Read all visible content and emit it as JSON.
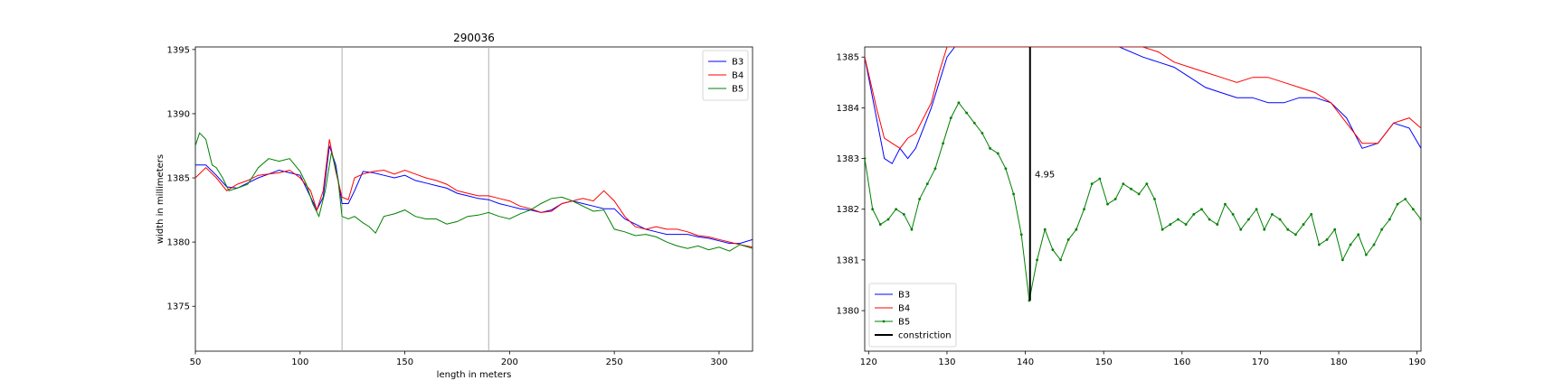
{
  "chart_data": [
    {
      "type": "line",
      "title": "290036",
      "xlabel": "length in meters",
      "ylabel": "width in millimeters",
      "xlim": [
        50,
        316
      ],
      "ylim": [
        1371.5,
        1395.2
      ],
      "xticks": [
        "50",
        "100",
        "150",
        "200",
        "250",
        "300"
      ],
      "yticks": [
        "1375",
        "1380",
        "1385",
        "1390",
        "1395"
      ],
      "vlines": [
        120,
        190
      ],
      "legend_position": "top-right",
      "grid": false,
      "series": [
        {
          "name": "B3",
          "color": "#0000ff",
          "x": [
            50,
            55,
            60,
            65,
            70,
            75,
            80,
            85,
            90,
            95,
            100,
            105,
            108,
            111,
            114,
            117,
            120,
            123,
            126,
            130,
            135,
            140,
            145,
            150,
            155,
            160,
            165,
            170,
            175,
            180,
            185,
            190,
            195,
            200,
            205,
            210,
            215,
            220,
            225,
            230,
            235,
            240,
            245,
            250,
            255,
            260,
            265,
            270,
            275,
            280,
            285,
            290,
            295,
            300,
            305,
            310,
            316
          ],
          "y": [
            1386,
            1386,
            1385.2,
            1384.3,
            1384.2,
            1384.6,
            1385,
            1385.3,
            1385.6,
            1385.4,
            1385.2,
            1383.5,
            1382.5,
            1383.5,
            1387.5,
            1386,
            1383,
            1383,
            1384,
            1385.5,
            1385.4,
            1385.2,
            1385,
            1385.2,
            1384.8,
            1384.6,
            1384.4,
            1384.2,
            1383.8,
            1383.6,
            1383.4,
            1383.3,
            1383,
            1382.8,
            1382.6,
            1382.5,
            1382.3,
            1382.5,
            1383,
            1383.2,
            1383,
            1382.8,
            1382.6,
            1382.6,
            1381.8,
            1381.4,
            1381,
            1380.8,
            1380.6,
            1380.6,
            1380.6,
            1380.4,
            1380.3,
            1380.1,
            1379.9,
            1379.9,
            1380.2
          ]
        },
        {
          "name": "B4",
          "color": "#ff0000",
          "x": [
            50,
            55,
            60,
            65,
            70,
            75,
            80,
            85,
            90,
            95,
            100,
            105,
            108,
            111,
            114,
            117,
            120,
            123,
            126,
            130,
            135,
            140,
            145,
            150,
            155,
            160,
            165,
            170,
            175,
            180,
            185,
            190,
            195,
            200,
            205,
            210,
            215,
            220,
            225,
            230,
            235,
            240,
            245,
            250,
            255,
            260,
            265,
            270,
            275,
            280,
            285,
            290,
            295,
            300,
            305,
            310,
            316
          ],
          "y": [
            1385,
            1385.8,
            1385,
            1384,
            1384.5,
            1384.8,
            1385.2,
            1385.3,
            1385.4,
            1385.6,
            1385,
            1384,
            1382.5,
            1384,
            1388,
            1385.5,
            1383.5,
            1383.3,
            1385,
            1385.3,
            1385.5,
            1385.6,
            1385.3,
            1385.6,
            1385.3,
            1385,
            1384.8,
            1384.5,
            1384,
            1383.8,
            1383.6,
            1383.6,
            1383.4,
            1383.2,
            1382.8,
            1382.6,
            1382.3,
            1382.4,
            1383,
            1383.2,
            1383.4,
            1383.2,
            1384,
            1383.2,
            1382,
            1381.2,
            1381,
            1381.2,
            1381,
            1381,
            1380.8,
            1380.5,
            1380.4,
            1380.2,
            1380,
            1379.8,
            1379.6
          ]
        },
        {
          "name": "B5",
          "color": "#008000",
          "x": [
            50,
            52,
            55,
            58,
            60,
            63,
            66,
            70,
            75,
            80,
            85,
            90,
            95,
            100,
            103,
            106,
            109,
            112,
            115,
            118,
            120,
            123,
            126,
            130,
            133,
            136,
            140,
            145,
            150,
            155,
            160,
            165,
            170,
            175,
            180,
            185,
            190,
            195,
            200,
            205,
            210,
            215,
            220,
            225,
            230,
            235,
            240,
            245,
            250,
            255,
            260,
            265,
            270,
            275,
            280,
            285,
            290,
            295,
            300,
            305,
            310,
            316
          ],
          "y": [
            1387.5,
            1388.5,
            1388,
            1386,
            1385.8,
            1385,
            1384,
            1384.2,
            1384.5,
            1385.8,
            1386.5,
            1386.3,
            1386.5,
            1385.5,
            1384.5,
            1383,
            1382,
            1384,
            1387,
            1385,
            1382,
            1381.8,
            1382,
            1381.5,
            1381.2,
            1380.7,
            1382,
            1382.2,
            1382.5,
            1382,
            1381.8,
            1381.8,
            1381.4,
            1381.6,
            1382,
            1382.1,
            1382.3,
            1382,
            1381.8,
            1382.2,
            1382.5,
            1383,
            1383.4,
            1383.5,
            1383.2,
            1382.8,
            1382.4,
            1382.5,
            1381,
            1380.8,
            1380.5,
            1380.6,
            1380.4,
            1380,
            1379.7,
            1379.5,
            1379.7,
            1379.4,
            1379.6,
            1379.3,
            1379.8,
            1379.5
          ]
        }
      ]
    },
    {
      "type": "line",
      "title": "",
      "xlabel": "",
      "ylabel": "",
      "xlim": [
        119.5,
        190.5
      ],
      "ylim": [
        1379.2,
        1385.2
      ],
      "xticks": [
        "120",
        "130",
        "140",
        "150",
        "160",
        "170",
        "180",
        "190"
      ],
      "yticks": [
        "1380",
        "1381",
        "1382",
        "1383",
        "1384",
        "1385"
      ],
      "legend_position": "bottom-left",
      "grid": false,
      "annotation": {
        "x": 141.2,
        "y": 1382.7,
        "text": "4.95"
      },
      "constriction": {
        "x": 140.6,
        "y_from": 1380.2,
        "y_to": 1385.2
      },
      "series": [
        {
          "name": "B3",
          "color": "#0000ff",
          "x": [
            119.5,
            121,
            122,
            123,
            124,
            125,
            126,
            127,
            128,
            129,
            130,
            131,
            133,
            135,
            137,
            139,
            140,
            142,
            145,
            148,
            150,
            152,
            155,
            157,
            159,
            161,
            163,
            165,
            167,
            169,
            171,
            173,
            175,
            177,
            179,
            181,
            183,
            185,
            187,
            189,
            190.5
          ],
          "y": [
            1385,
            1383.8,
            1383,
            1382.9,
            1383.2,
            1383,
            1383.2,
            1383.6,
            1384,
            1384.5,
            1385,
            1385.2,
            1385.2,
            1385.2,
            1385.2,
            1385.2,
            1385.2,
            1385.2,
            1385.2,
            1385.2,
            1385.2,
            1385.2,
            1385,
            1384.9,
            1384.8,
            1384.6,
            1384.4,
            1384.3,
            1384.2,
            1384.2,
            1384.1,
            1384.1,
            1384.2,
            1384.2,
            1384.1,
            1383.8,
            1383.2,
            1383.3,
            1383.7,
            1383.6,
            1383.2
          ]
        },
        {
          "name": "B4",
          "color": "#ff0000",
          "x": [
            119.5,
            121,
            122,
            123,
            124,
            125,
            126,
            127,
            128,
            129,
            130,
            131,
            133,
            135,
            137,
            139,
            140,
            142,
            145,
            148,
            150,
            152,
            155,
            157,
            159,
            161,
            163,
            165,
            167,
            169,
            171,
            173,
            175,
            177,
            179,
            181,
            183,
            185,
            187,
            189,
            190.5
          ],
          "y": [
            1385,
            1384,
            1383.4,
            1383.3,
            1383.2,
            1383.4,
            1383.5,
            1383.8,
            1384.1,
            1384.7,
            1385.2,
            1385.2,
            1385.2,
            1385.2,
            1385.2,
            1385.2,
            1385.2,
            1385.2,
            1385.2,
            1385.2,
            1385.2,
            1385.2,
            1385.2,
            1385.1,
            1384.9,
            1384.8,
            1384.7,
            1384.6,
            1384.5,
            1384.6,
            1384.6,
            1384.5,
            1384.4,
            1384.3,
            1384.1,
            1383.7,
            1383.3,
            1383.3,
            1383.7,
            1383.8,
            1383.6
          ]
        },
        {
          "name": "B5",
          "color": "#008000",
          "x": [
            119.5,
            120.5,
            121.5,
            122.5,
            123.5,
            124.5,
            125.5,
            126.5,
            127.5,
            128.5,
            129.5,
            130.5,
            131.5,
            132.5,
            133.5,
            134.5,
            135.5,
            136.5,
            137.5,
            138.5,
            139.5,
            140.5,
            141.5,
            142.5,
            143.5,
            144.5,
            145.5,
            146.5,
            147.5,
            148.5,
            149.5,
            150.5,
            151.5,
            152.5,
            153.5,
            154.5,
            155.5,
            156.5,
            157.5,
            158.5,
            159.5,
            160.5,
            161.5,
            162.5,
            163.5,
            164.5,
            165.5,
            166.5,
            167.5,
            168.5,
            169.5,
            170.5,
            171.5,
            172.5,
            173.5,
            174.5,
            175.5,
            176.5,
            177.5,
            178.5,
            179.5,
            180.5,
            181.5,
            182.5,
            183.5,
            184.5,
            185.5,
            186.5,
            187.5,
            188.5,
            189.5,
            190.5
          ],
          "y": [
            1383,
            1382,
            1381.7,
            1381.8,
            1382,
            1381.9,
            1381.6,
            1382.2,
            1382.5,
            1382.8,
            1383.3,
            1383.8,
            1384.1,
            1383.9,
            1383.7,
            1383.5,
            1383.2,
            1383.1,
            1382.8,
            1382.3,
            1381.5,
            1380.2,
            1381,
            1381.6,
            1381.2,
            1381,
            1381.4,
            1381.6,
            1382,
            1382.5,
            1382.6,
            1382.1,
            1382.2,
            1382.5,
            1382.4,
            1382.3,
            1382.5,
            1382.2,
            1381.6,
            1381.7,
            1381.8,
            1381.7,
            1381.9,
            1382,
            1381.8,
            1381.7,
            1382.1,
            1381.9,
            1381.6,
            1381.8,
            1382,
            1381.6,
            1381.9,
            1381.8,
            1381.6,
            1381.5,
            1381.7,
            1381.9,
            1381.3,
            1381.4,
            1381.6,
            1381,
            1381.3,
            1381.5,
            1381.1,
            1381.3,
            1381.6,
            1381.8,
            1382.1,
            1382.2,
            1382,
            1381.8
          ]
        }
      ],
      "legend": [
        "B3",
        "B4",
        "B5",
        "constriction"
      ]
    }
  ]
}
